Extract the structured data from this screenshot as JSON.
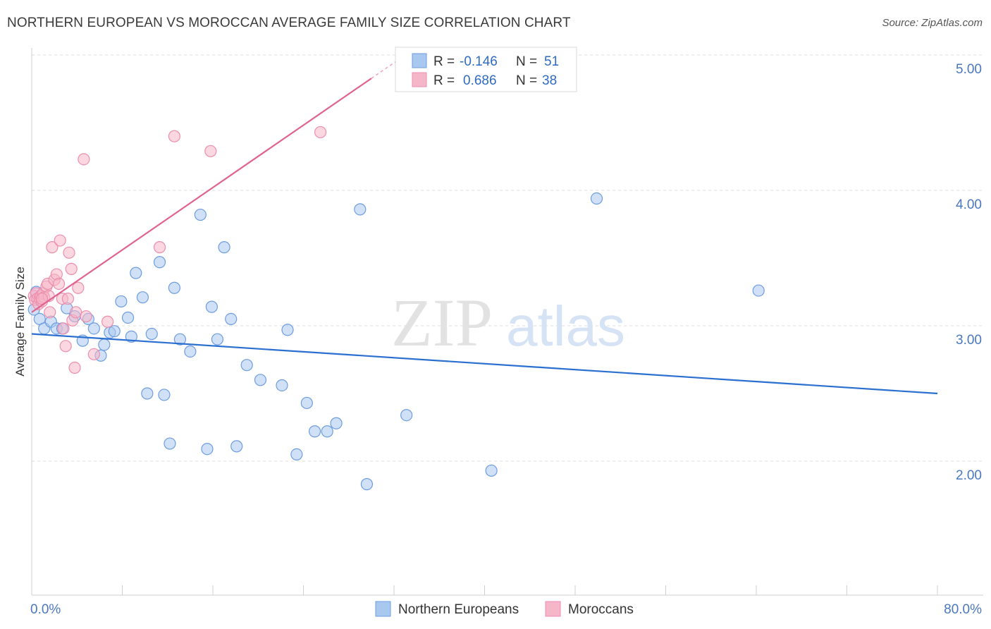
{
  "title": "NORTHERN EUROPEAN VS MOROCCAN AVERAGE FAMILY SIZE CORRELATION CHART",
  "source": "Source: ZipAtlas.com",
  "watermark": {
    "zip": "ZIP",
    "atlas": "atlas"
  },
  "colors": {
    "blue_fill": "#a9c8f0",
    "blue_stroke": "#6d9de0",
    "blue_line": "#2b6fd0",
    "pink_fill": "#f6b6c9",
    "pink_stroke": "#ec8fac",
    "pink_line": "#e0638f",
    "tick_text": "#4a78c0",
    "grid": "#dddddd"
  },
  "legend": {
    "r_label": "R =",
    "n_label": "N =",
    "rows": [
      {
        "r": "-0.146",
        "n": "51",
        "series": "blue"
      },
      {
        "r": "0.686",
        "n": "38",
        "series": "pink"
      }
    ]
  },
  "chart_data": {
    "type": "scatter",
    "title": "NORTHERN EUROPEAN VS MOROCCAN AVERAGE FAMILY SIZE CORRELATION CHART",
    "xlabel": "",
    "ylabel": "Average Family Size",
    "xlim": [
      0,
      80
    ],
    "ylim": [
      1.0,
      5.2
    ],
    "x_tick_labels": [
      "0.0%",
      "80.0%"
    ],
    "y_ticks": [
      2.0,
      3.0,
      4.0,
      5.0
    ],
    "y_tick_labels": [
      "2.00",
      "3.00",
      "4.00",
      "5.00"
    ],
    "grid": true,
    "legend_position": "bottom",
    "series": [
      {
        "name": "Northern Europeans",
        "color": "#a9c8f0",
        "trend": {
          "x": [
            0.0,
            80.0
          ],
          "y": [
            2.94,
            2.5
          ]
        },
        "points": [
          [
            0.4,
            3.25
          ],
          [
            0.7,
            3.05
          ],
          [
            1.1,
            2.98
          ],
          [
            1.7,
            3.03
          ],
          [
            2.2,
            2.98
          ],
          [
            2.7,
            2.98
          ],
          [
            3.1,
            3.13
          ],
          [
            3.8,
            3.07
          ],
          [
            4.5,
            2.89
          ],
          [
            5.0,
            3.05
          ],
          [
            5.5,
            2.98
          ],
          [
            6.1,
            2.78
          ],
          [
            6.4,
            2.86
          ],
          [
            6.9,
            2.95
          ],
          [
            7.3,
            2.96
          ],
          [
            7.9,
            3.18
          ],
          [
            8.5,
            3.06
          ],
          [
            8.8,
            2.92
          ],
          [
            9.2,
            3.39
          ],
          [
            9.8,
            3.21
          ],
          [
            10.2,
            2.5
          ],
          [
            10.6,
            2.94
          ],
          [
            11.3,
            3.47
          ],
          [
            11.7,
            2.49
          ],
          [
            12.2,
            2.13
          ],
          [
            12.6,
            3.28
          ],
          [
            13.1,
            2.9
          ],
          [
            14.0,
            2.81
          ],
          [
            14.9,
            3.82
          ],
          [
            15.5,
            2.09
          ],
          [
            15.9,
            3.14
          ],
          [
            16.4,
            2.9
          ],
          [
            17.0,
            3.58
          ],
          [
            17.6,
            3.05
          ],
          [
            18.1,
            2.11
          ],
          [
            19.0,
            2.71
          ],
          [
            20.2,
            2.6
          ],
          [
            22.1,
            2.56
          ],
          [
            22.6,
            2.97
          ],
          [
            23.4,
            2.05
          ],
          [
            24.3,
            2.43
          ],
          [
            25.0,
            2.22
          ],
          [
            26.1,
            2.22
          ],
          [
            26.9,
            2.28
          ],
          [
            29.0,
            3.86
          ],
          [
            29.6,
            1.83
          ],
          [
            33.1,
            2.34
          ],
          [
            40.6,
            1.93
          ],
          [
            49.9,
            3.94
          ],
          [
            64.2,
            3.26
          ],
          [
            0.2,
            3.12
          ]
        ]
      },
      {
        "name": "Moroccans",
        "color": "#f6b6c9",
        "trend": {
          "x": [
            0.0,
            33.0
          ],
          "y": [
            3.1,
            5.0
          ],
          "solid_until_x": 30.0
        },
        "points": [
          [
            0.2,
            3.22
          ],
          [
            0.3,
            3.19
          ],
          [
            0.4,
            3.24
          ],
          [
            0.5,
            3.2
          ],
          [
            0.6,
            3.16
          ],
          [
            0.7,
            3.2
          ],
          [
            0.8,
            3.22
          ],
          [
            0.9,
            3.18
          ],
          [
            1.0,
            3.24
          ],
          [
            1.1,
            3.21
          ],
          [
            1.3,
            3.29
          ],
          [
            1.4,
            3.31
          ],
          [
            1.5,
            3.22
          ],
          [
            1.6,
            3.1
          ],
          [
            1.8,
            3.58
          ],
          [
            2.0,
            3.34
          ],
          [
            2.2,
            3.38
          ],
          [
            2.4,
            3.31
          ],
          [
            2.5,
            3.63
          ],
          [
            2.7,
            3.2
          ],
          [
            2.8,
            2.98
          ],
          [
            3.0,
            2.85
          ],
          [
            3.2,
            3.2
          ],
          [
            3.3,
            3.54
          ],
          [
            3.5,
            3.42
          ],
          [
            3.6,
            3.04
          ],
          [
            3.8,
            2.69
          ],
          [
            3.9,
            3.1
          ],
          [
            4.1,
            3.28
          ],
          [
            4.6,
            4.23
          ],
          [
            4.8,
            3.07
          ],
          [
            5.5,
            2.79
          ],
          [
            6.7,
            3.03
          ],
          [
            11.3,
            3.58
          ],
          [
            12.6,
            4.4
          ],
          [
            15.8,
            4.29
          ],
          [
            25.5,
            4.43
          ],
          [
            0.9,
            3.2
          ]
        ]
      }
    ]
  },
  "bottom_legend": [
    {
      "label": "Northern Europeans",
      "series": "blue"
    },
    {
      "label": "Moroccans",
      "series": "pink"
    }
  ]
}
